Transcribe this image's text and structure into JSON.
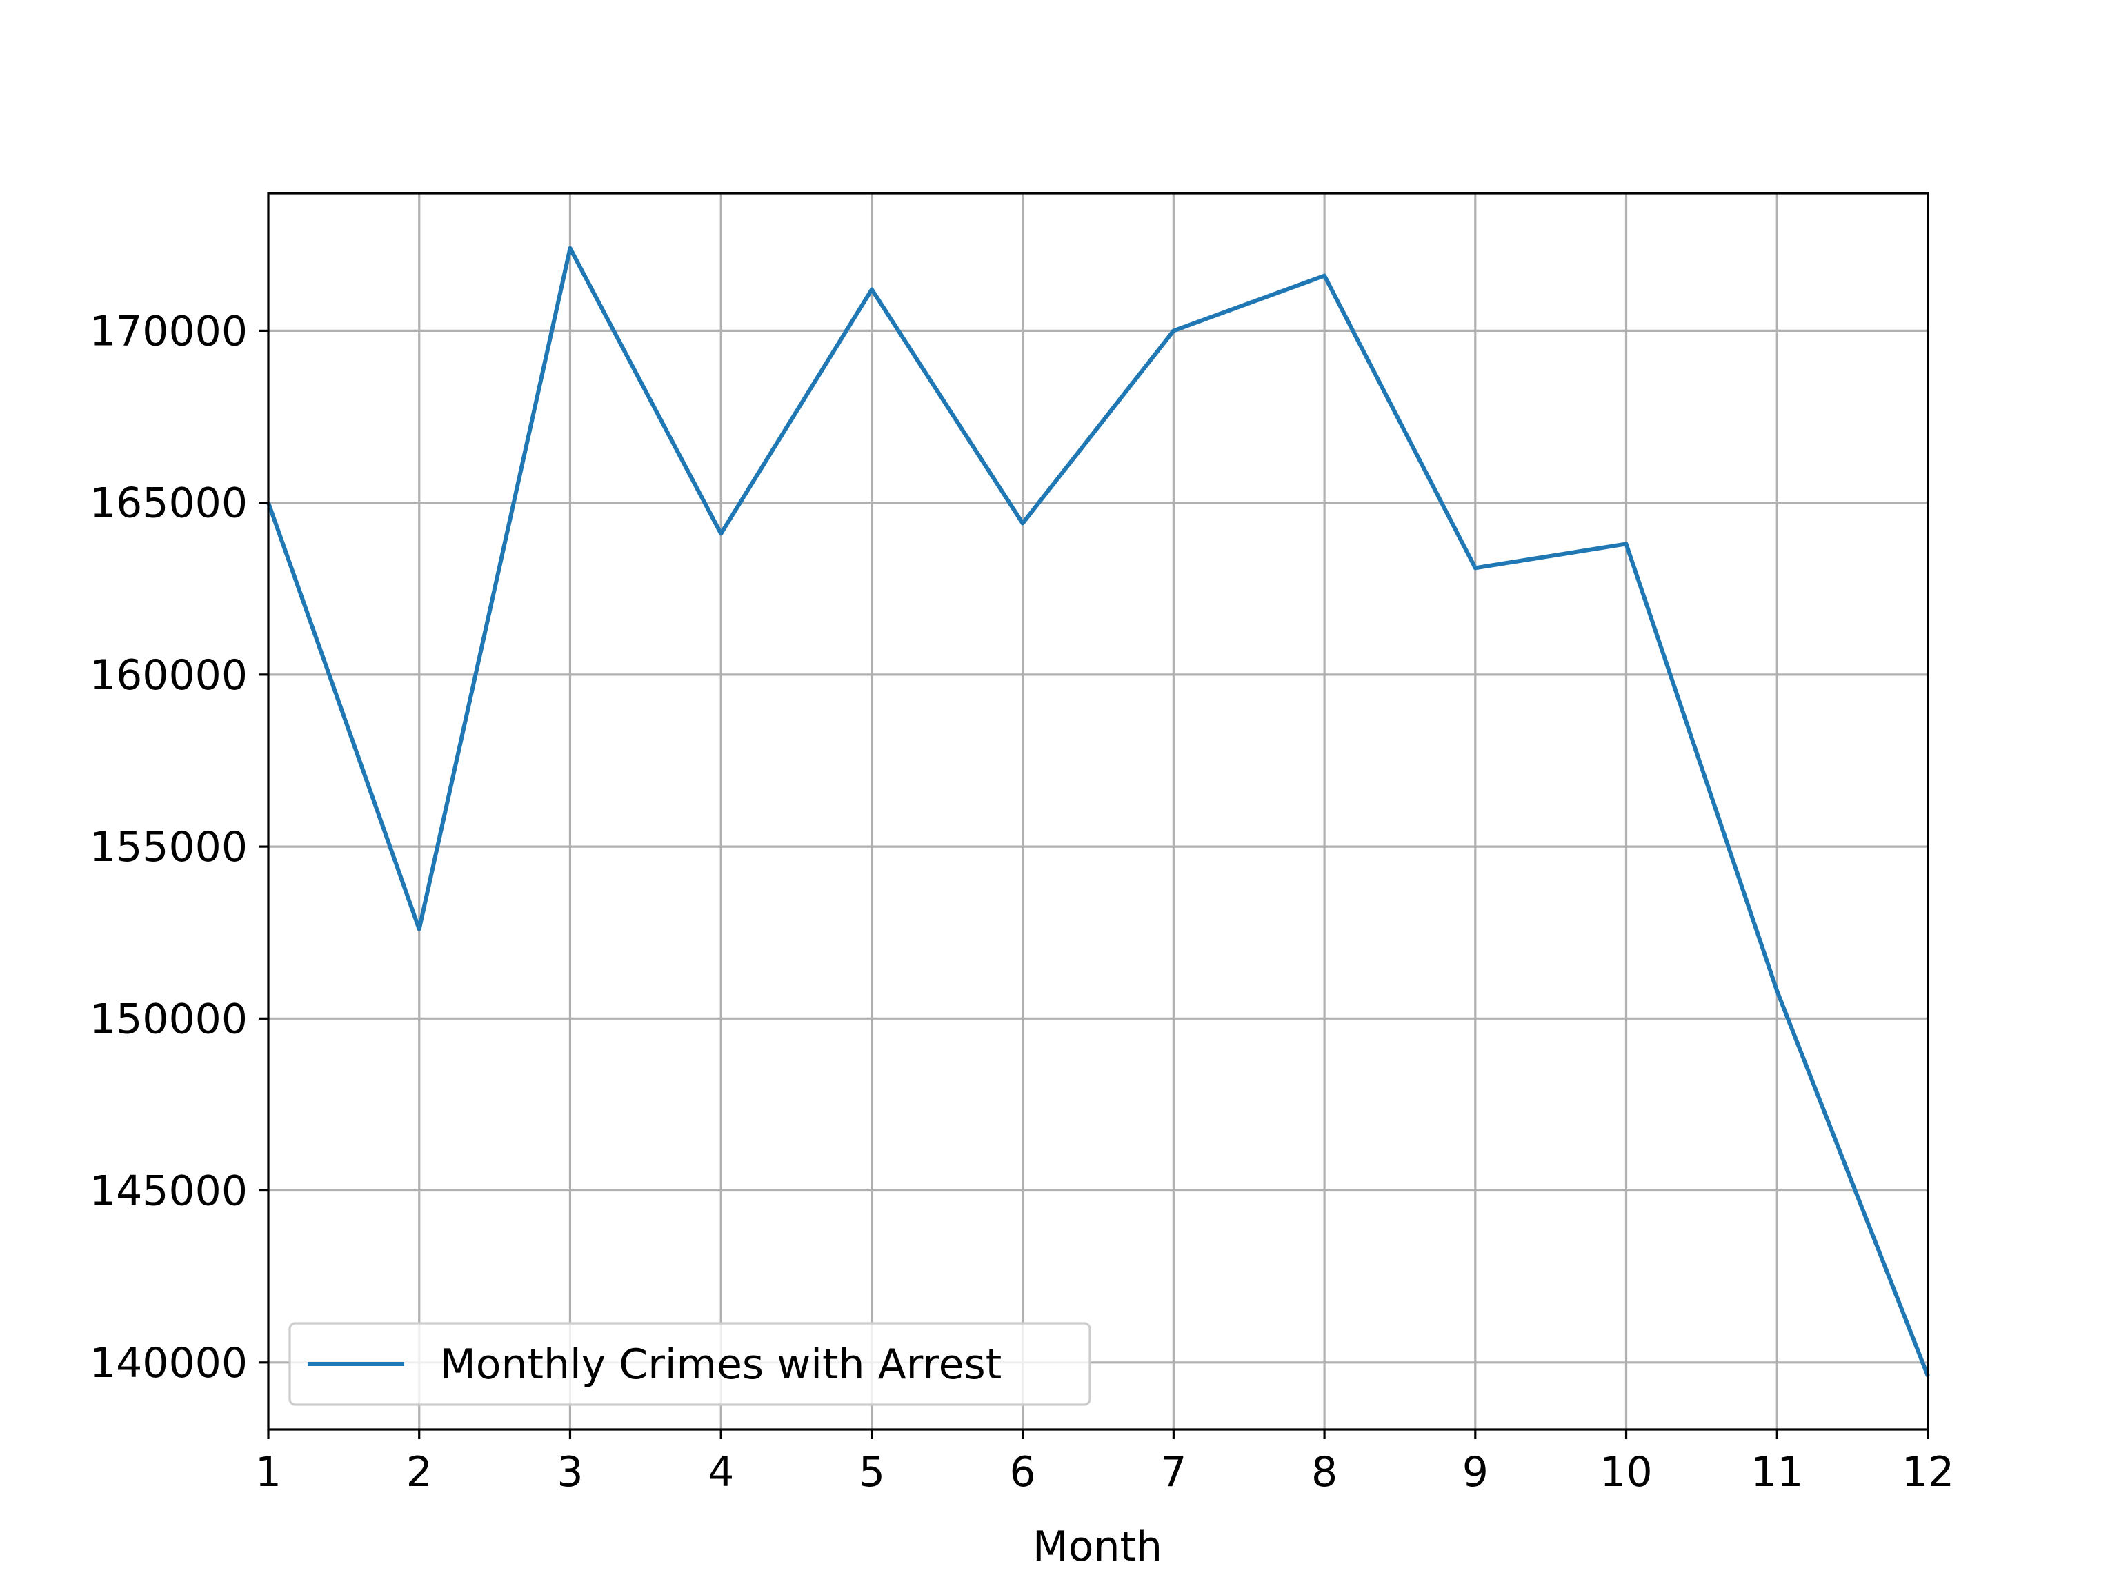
{
  "chart_data": {
    "type": "line",
    "xlabel": "Month",
    "ylabel": "",
    "x": [
      1,
      2,
      3,
      4,
      5,
      6,
      7,
      8,
      9,
      10,
      11,
      12
    ],
    "series": [
      {
        "name": "Monthly Crimes with Arrest",
        "color": "#1f77b4",
        "values": [
          165000,
          152600,
          172400,
          164100,
          171200,
          164400,
          170000,
          171600,
          163100,
          163800,
          150800,
          139600
        ]
      }
    ],
    "xlim": [
      1,
      12
    ],
    "ylim": [
      138050,
      174000
    ],
    "xticks": [
      "1",
      "2",
      "3",
      "4",
      "5",
      "6",
      "7",
      "8",
      "9",
      "10",
      "11",
      "12"
    ],
    "yticks": [
      "140000",
      "145000",
      "150000",
      "155000",
      "160000",
      "165000",
      "170000"
    ],
    "grid": true,
    "legend_position": "lower-left"
  }
}
